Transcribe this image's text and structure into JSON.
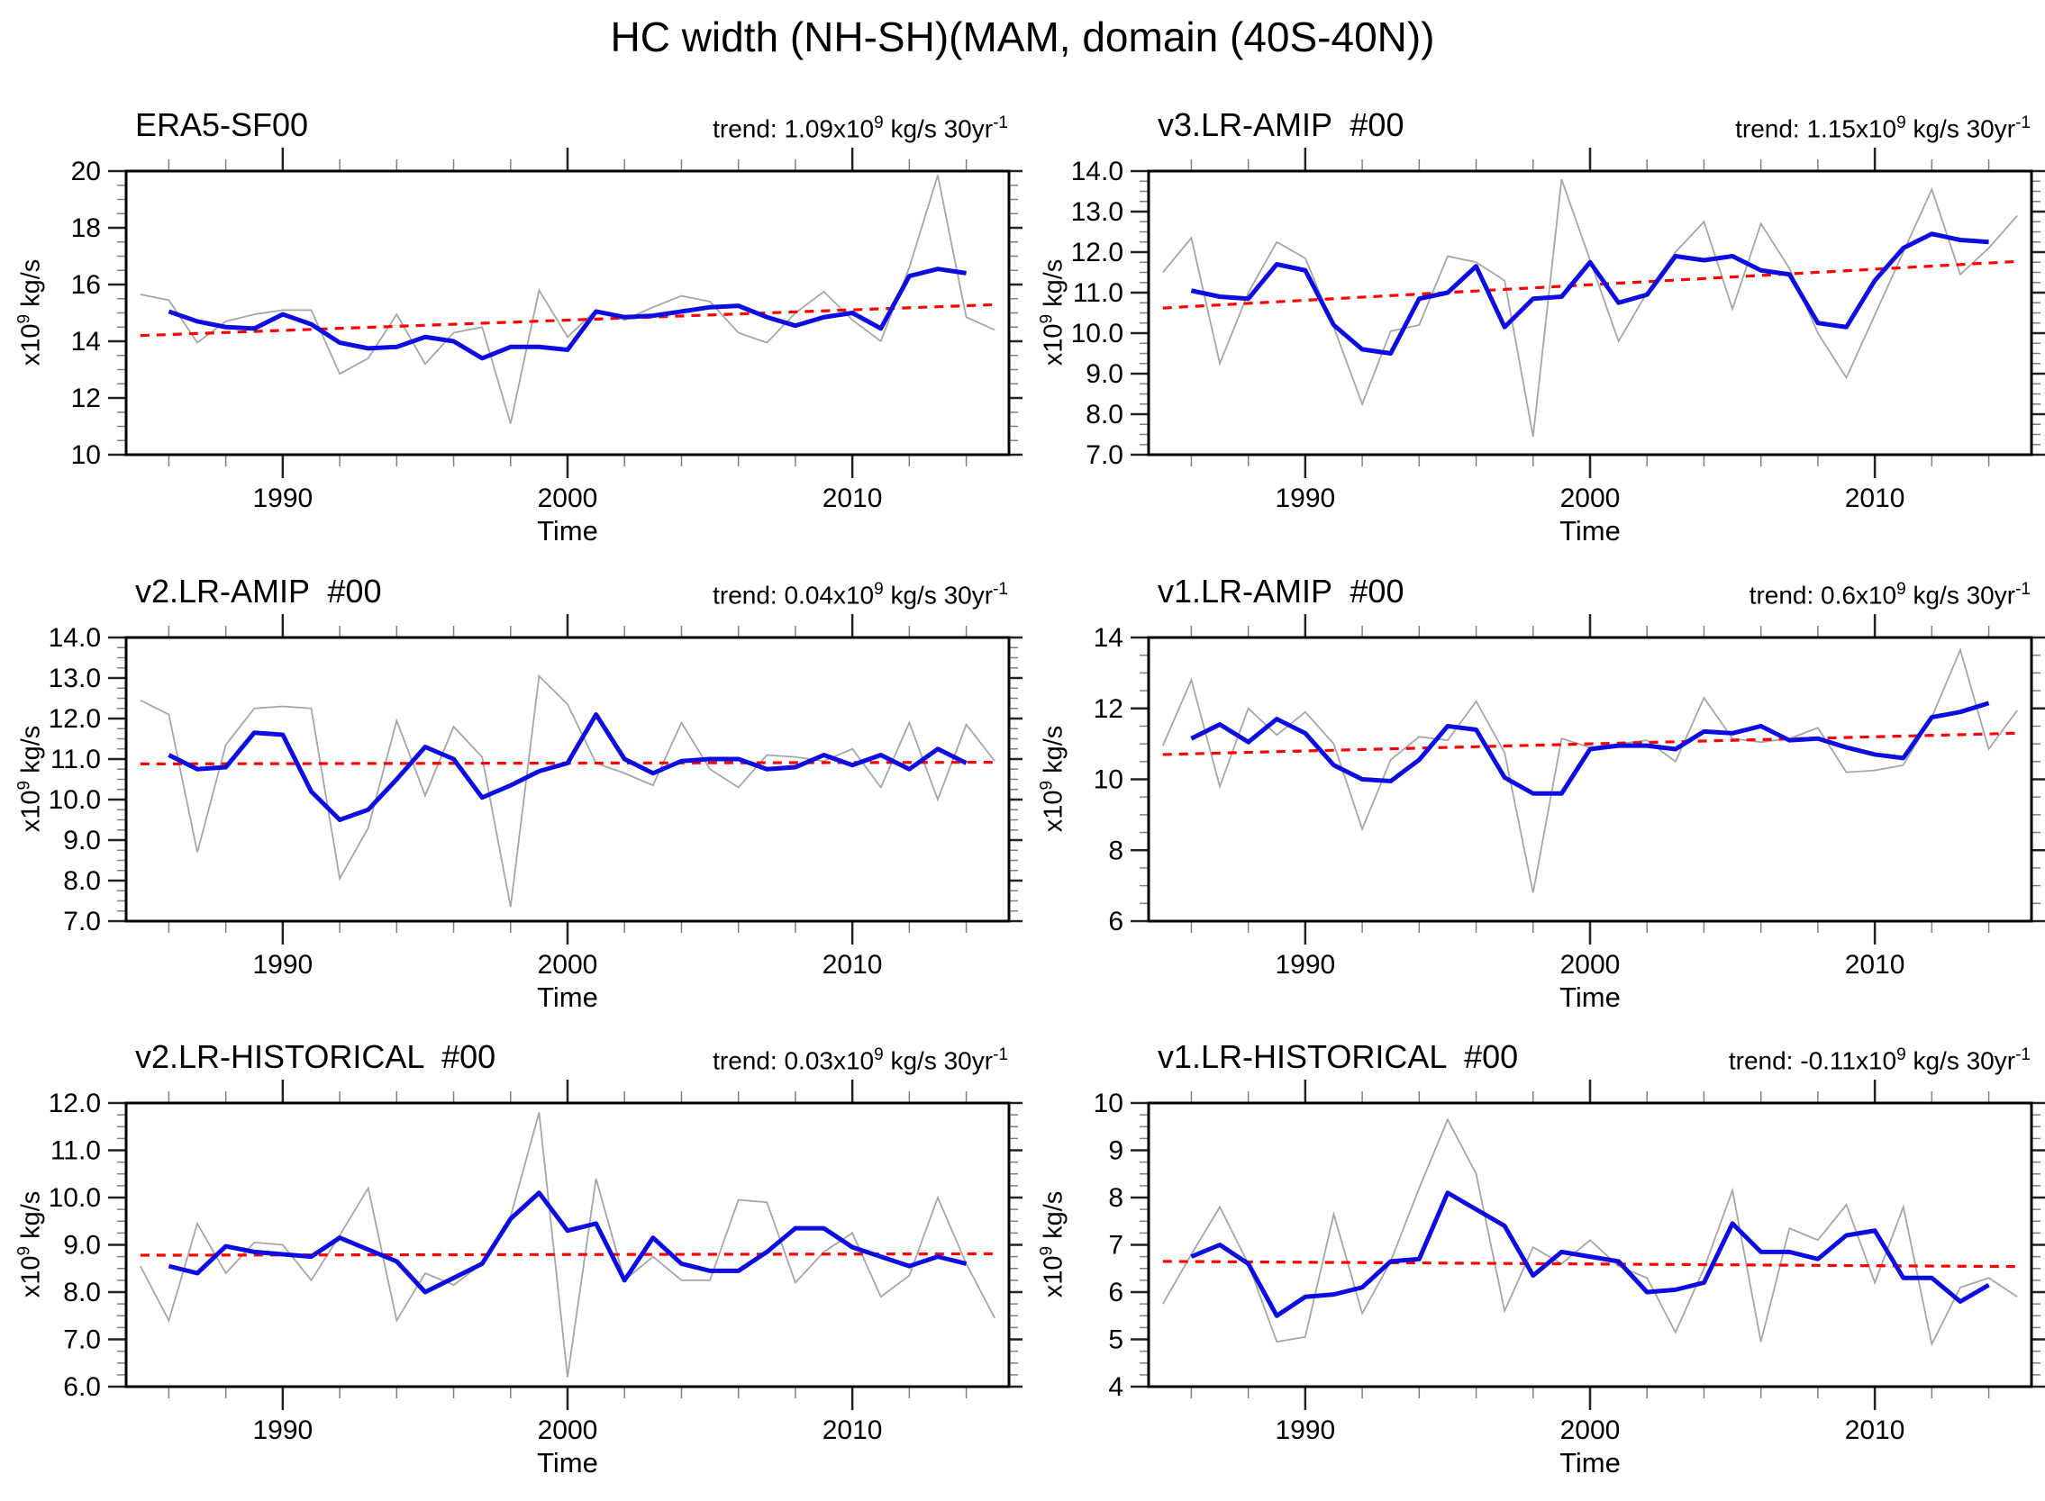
{
  "title": "HC width (NH-SH)(MAM, domain (40S-40N))",
  "axis": {
    "xlabel": "Time",
    "ylabel": {
      "pre": "x10",
      "sup": "9",
      "post": " kg/s"
    }
  },
  "colors": {
    "raw": "#a6a6a6",
    "smooth": "#0d0de0",
    "trend": "#ff0000",
    "axis": "#000000",
    "major_tick": "#222222",
    "minor_tick": "#808080"
  },
  "chart_data": [
    {
      "type": "line",
      "title": "ERA5-SF00",
      "trend_label": {
        "pre": "trend: 1.09x10",
        "sup1": "9",
        "mid": " kg/s 30yr",
        "sup2": "-1"
      },
      "xlim": [
        1984.5,
        2015.5
      ],
      "ylim": [
        10,
        20
      ],
      "xtick_vals": [
        1990,
        2000,
        2010
      ],
      "xtick_labels": [
        "1990",
        "2000",
        "2010"
      ],
      "xminor_step": 2,
      "ytick_vals": [
        10,
        12,
        14,
        16,
        18,
        20
      ],
      "ytick_labels": [
        "10",
        "12",
        "14",
        "16",
        "18",
        "20"
      ],
      "yminor_step": 0.5,
      "series": [
        {
          "name": "annual",
          "color_key": "raw",
          "start_year": 1985,
          "values": [
            15.65,
            15.45,
            13.95,
            14.7,
            14.95,
            15.1,
            15.1,
            12.85,
            13.4,
            14.95,
            13.2,
            14.3,
            14.5,
            11.1,
            15.8,
            14.15,
            15.1,
            14.75,
            15.2,
            15.6,
            15.4,
            14.3,
            13.95,
            15.0,
            15.75,
            14.75,
            14.0,
            16.6,
            19.85,
            14.85,
            14.4
          ]
        },
        {
          "name": "smoothed",
          "color_key": "smooth",
          "start_year": 1986,
          "values": [
            15.05,
            14.7,
            14.5,
            14.45,
            14.95,
            14.6,
            13.95,
            13.75,
            13.8,
            14.15,
            14.0,
            13.4,
            13.8,
            13.8,
            13.7,
            15.05,
            14.85,
            14.9,
            15.05,
            15.2,
            15.25,
            14.85,
            14.55,
            14.85,
            15.0,
            14.45,
            16.3,
            16.55,
            16.4
          ]
        }
      ],
      "trend_line": {
        "start_year": 1985,
        "end_year": 2015,
        "start_value": 14.2,
        "end_value": 15.29
      }
    },
    {
      "type": "line",
      "title": "v3.LR-AMIP  #00",
      "trend_label": {
        "pre": "trend: 1.15x10",
        "sup1": "9",
        "mid": " kg/s 30yr",
        "sup2": "-1"
      },
      "xlim": [
        1984.5,
        2015.5
      ],
      "ylim": [
        7,
        14
      ],
      "xtick_vals": [
        1990,
        2000,
        2010
      ],
      "xtick_labels": [
        "1990",
        "2000",
        "2010"
      ],
      "xminor_step": 2,
      "ytick_vals": [
        7,
        8,
        9,
        10,
        11,
        12,
        13,
        14
      ],
      "ytick_labels": [
        "7.0",
        "8.0",
        "9.0",
        "10.0",
        "11.0",
        "12.0",
        "13.0",
        "14.0"
      ],
      "yminor_step": 0.25,
      "series": [
        {
          "name": "annual",
          "color_key": "raw",
          "start_year": 1985,
          "values": [
            11.5,
            12.35,
            9.25,
            11.0,
            12.25,
            11.85,
            10.15,
            8.25,
            10.05,
            10.2,
            11.9,
            11.75,
            11.3,
            7.45,
            13.8,
            11.8,
            9.8,
            11.0,
            12.0,
            12.75,
            10.6,
            12.7,
            11.6,
            10.0,
            8.9,
            10.45,
            12.0,
            13.55,
            11.45,
            12.1,
            12.9
          ]
        },
        {
          "name": "smoothed",
          "color_key": "smooth",
          "start_year": 1986,
          "values": [
            11.05,
            10.9,
            10.85,
            11.7,
            11.55,
            10.2,
            9.6,
            9.5,
            10.85,
            11.0,
            11.65,
            10.15,
            10.85,
            10.9,
            11.75,
            10.75,
            10.95,
            11.9,
            11.8,
            11.9,
            11.55,
            11.45,
            10.25,
            10.15,
            11.3,
            12.1,
            12.45,
            12.3,
            12.25
          ]
        }
      ],
      "trend_line": {
        "start_year": 1985,
        "end_year": 2015,
        "start_value": 10.62,
        "end_value": 11.77
      }
    },
    {
      "type": "line",
      "title": "v2.LR-AMIP  #00",
      "trend_label": {
        "pre": "trend: 0.04x10",
        "sup1": "9",
        "mid": " kg/s 30yr",
        "sup2": "-1"
      },
      "xlim": [
        1984.5,
        2015.5
      ],
      "ylim": [
        7,
        14
      ],
      "xtick_vals": [
        1990,
        2000,
        2010
      ],
      "xtick_labels": [
        "1990",
        "2000",
        "2010"
      ],
      "xminor_step": 2,
      "ytick_vals": [
        7,
        8,
        9,
        10,
        11,
        12,
        13,
        14
      ],
      "ytick_labels": [
        "7.0",
        "8.0",
        "9.0",
        "10.0",
        "11.0",
        "12.0",
        "13.0",
        "14.0"
      ],
      "yminor_step": 0.25,
      "series": [
        {
          "name": "annual",
          "color_key": "raw",
          "start_year": 1985,
          "values": [
            12.45,
            12.1,
            8.7,
            11.35,
            12.25,
            12.3,
            12.25,
            8.05,
            9.3,
            11.95,
            10.1,
            11.8,
            11.05,
            7.35,
            13.05,
            12.35,
            10.9,
            10.65,
            10.35,
            11.9,
            10.75,
            10.3,
            11.1,
            11.05,
            10.95,
            11.25,
            10.3,
            11.9,
            10.0,
            11.85,
            10.95
          ]
        },
        {
          "name": "smoothed",
          "color_key": "smooth",
          "start_year": 1986,
          "values": [
            11.1,
            10.75,
            10.8,
            11.65,
            11.6,
            10.2,
            9.5,
            9.75,
            10.5,
            11.3,
            11.0,
            10.05,
            10.35,
            10.7,
            10.9,
            12.1,
            11.0,
            10.65,
            10.95,
            11.0,
            11.0,
            10.75,
            10.8,
            11.1,
            10.85,
            11.1,
            10.75,
            11.25,
            10.9
          ]
        }
      ],
      "trend_line": {
        "start_year": 1985,
        "end_year": 2015,
        "start_value": 10.88,
        "end_value": 10.92
      }
    },
    {
      "type": "line",
      "title": "v1.LR-AMIP  #00",
      "trend_label": {
        "pre": "trend: 0.6x10",
        "sup1": "9",
        "mid": " kg/s 30yr",
        "sup2": "-1"
      },
      "xlim": [
        1984.5,
        2015.5
      ],
      "ylim": [
        6,
        14
      ],
      "xtick_vals": [
        1990,
        2000,
        2010
      ],
      "xtick_labels": [
        "1990",
        "2000",
        "2010"
      ],
      "xminor_step": 2,
      "ytick_vals": [
        6,
        8,
        10,
        12,
        14
      ],
      "ytick_labels": [
        "6",
        "8",
        "10",
        "12",
        "14"
      ],
      "yminor_step": 0.5,
      "series": [
        {
          "name": "annual",
          "color_key": "raw",
          "start_year": 1985,
          "values": [
            10.95,
            12.8,
            9.8,
            12.0,
            11.25,
            11.9,
            11.0,
            8.6,
            10.55,
            11.2,
            11.1,
            12.2,
            10.75,
            6.8,
            11.15,
            10.9,
            11.0,
            11.1,
            10.5,
            12.3,
            11.15,
            11.05,
            11.15,
            11.45,
            10.2,
            10.25,
            10.4,
            11.75,
            13.65,
            10.85,
            11.95
          ]
        },
        {
          "name": "smoothed",
          "color_key": "smooth",
          "start_year": 1986,
          "values": [
            11.15,
            11.55,
            11.05,
            11.7,
            11.3,
            10.4,
            10.0,
            9.95,
            10.55,
            11.5,
            11.4,
            10.05,
            9.6,
            9.6,
            10.85,
            10.95,
            10.95,
            10.85,
            11.35,
            11.3,
            11.5,
            11.1,
            11.15,
            10.9,
            10.7,
            10.6,
            11.75,
            11.9,
            12.15
          ]
        }
      ],
      "trend_line": {
        "start_year": 1985,
        "end_year": 2015,
        "start_value": 10.7,
        "end_value": 11.3
      }
    },
    {
      "type": "line",
      "title": "v2.LR-HISTORICAL  #00",
      "trend_label": {
        "pre": "trend: 0.03x10",
        "sup1": "9",
        "mid": " kg/s 30yr",
        "sup2": "-1"
      },
      "xlim": [
        1984.5,
        2015.5
      ],
      "ylim": [
        6,
        12
      ],
      "xtick_vals": [
        1990,
        2000,
        2010
      ],
      "xtick_labels": [
        "1990",
        "2000",
        "2010"
      ],
      "xminor_step": 2,
      "ytick_vals": [
        6,
        7,
        8,
        9,
        10,
        11,
        12
      ],
      "ytick_labels": [
        "6.0",
        "7.0",
        "8.0",
        "9.0",
        "10.0",
        "11.0",
        "12.0"
      ],
      "yminor_step": 0.25,
      "series": [
        {
          "name": "annual",
          "color_key": "raw",
          "start_year": 1985,
          "values": [
            8.55,
            7.4,
            9.45,
            8.4,
            9.05,
            9.0,
            8.25,
            9.2,
            10.2,
            7.4,
            8.4,
            8.15,
            8.6,
            9.6,
            11.8,
            6.2,
            10.4,
            8.25,
            8.75,
            8.25,
            8.25,
            9.95,
            9.9,
            8.2,
            8.85,
            9.25,
            7.9,
            8.35,
            10.0,
            8.6,
            7.45
          ]
        },
        {
          "name": "smoothed",
          "color_key": "smooth",
          "start_year": 1986,
          "values": [
            8.55,
            8.4,
            8.97,
            8.85,
            8.8,
            8.75,
            9.15,
            8.9,
            8.65,
            8.0,
            8.3,
            8.6,
            9.55,
            10.1,
            9.3,
            9.45,
            8.25,
            9.15,
            8.6,
            8.45,
            8.45,
            8.85,
            9.35,
            9.35,
            8.95,
            8.75,
            8.55,
            8.75,
            8.6
          ]
        }
      ],
      "trend_line": {
        "start_year": 1985,
        "end_year": 2015,
        "start_value": 8.78,
        "end_value": 8.81
      }
    },
    {
      "type": "line",
      "title": "v1.LR-HISTORICAL  #00",
      "trend_label": {
        "pre": "trend: -0.11x10",
        "sup1": "9",
        "mid": " kg/s 30yr",
        "sup2": "-1"
      },
      "xlim": [
        1984.5,
        2015.5
      ],
      "ylim": [
        4,
        10
      ],
      "xtick_vals": [
        1990,
        2000,
        2010
      ],
      "xtick_labels": [
        "1990",
        "2000",
        "2010"
      ],
      "xminor_step": 2,
      "ytick_vals": [
        4,
        5,
        6,
        7,
        8,
        9,
        10
      ],
      "ytick_labels": [
        "4",
        "5",
        "6",
        "7",
        "8",
        "9",
        "10"
      ],
      "yminor_step": 0.25,
      "series": [
        {
          "name": "annual",
          "color_key": "raw",
          "start_year": 1985,
          "values": [
            5.75,
            6.8,
            7.8,
            6.6,
            4.95,
            5.05,
            7.65,
            5.55,
            6.65,
            8.2,
            9.65,
            8.5,
            5.6,
            6.95,
            6.6,
            7.1,
            6.55,
            6.3,
            5.15,
            6.5,
            8.15,
            4.95,
            7.35,
            7.1,
            7.85,
            6.2,
            7.8,
            4.9,
            6.1,
            6.3,
            5.9
          ]
        },
        {
          "name": "smoothed",
          "color_key": "smooth",
          "start_year": 1986,
          "values": [
            6.75,
            7.0,
            6.6,
            5.5,
            5.9,
            5.95,
            6.1,
            6.65,
            6.7,
            8.1,
            7.75,
            7.4,
            6.35,
            6.85,
            6.75,
            6.65,
            6.0,
            6.05,
            6.2,
            7.45,
            6.85,
            6.85,
            6.7,
            7.2,
            7.3,
            6.3,
            6.3,
            5.8,
            6.15
          ]
        }
      ],
      "trend_line": {
        "start_year": 1985,
        "end_year": 2015,
        "start_value": 6.65,
        "end_value": 6.54
      }
    }
  ]
}
